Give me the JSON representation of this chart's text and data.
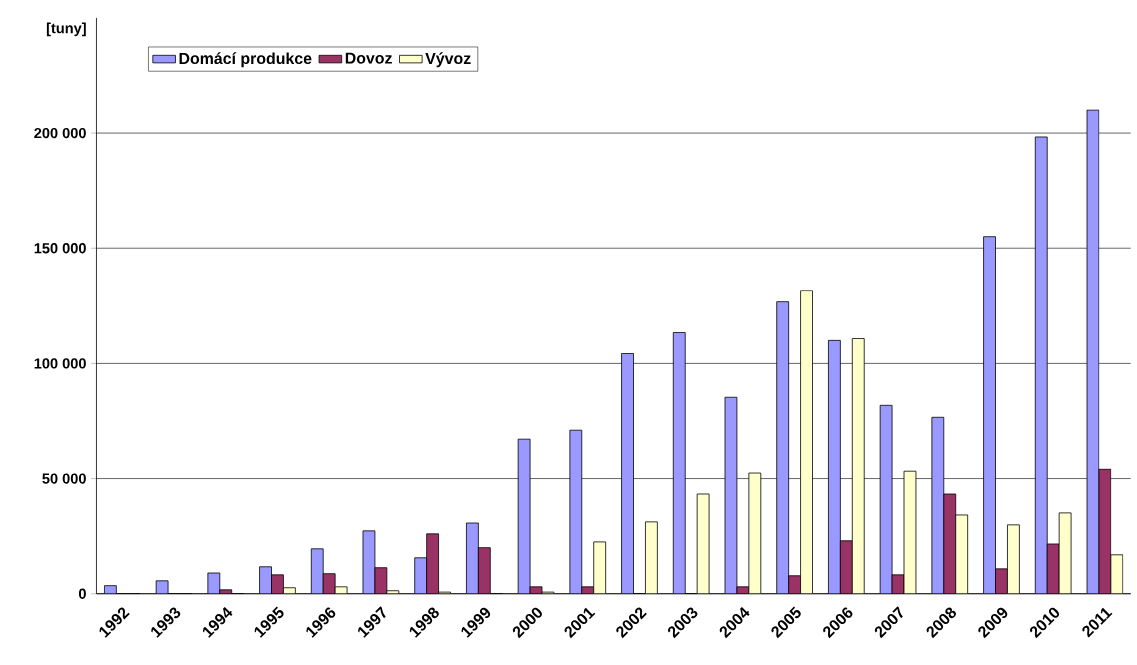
{
  "chart_data": {
    "type": "bar",
    "ylabel": "[tuny]",
    "categories": [
      "1992",
      "1993",
      "1994",
      "1995",
      "1996",
      "1997",
      "1998",
      "1999",
      "2000",
      "2001",
      "2002",
      "2003",
      "2004",
      "2005",
      "2006",
      "2007",
      "2008",
      "2009",
      "2010",
      "2011"
    ],
    "series": [
      {
        "name": "Domácí produkce",
        "color": "#9999ff",
        "values": [
          3500,
          5600,
          9000,
          11700,
          19500,
          27300,
          15600,
          30700,
          67100,
          71000,
          104300,
          113400,
          85300,
          126800,
          110000,
          81800,
          76600,
          155000,
          198300,
          210000
        ]
      },
      {
        "name": "Dovoz",
        "color": "#993366",
        "values": [
          0,
          0,
          1700,
          8200,
          8700,
          11300,
          26000,
          20000,
          3000,
          3000,
          0,
          0,
          3000,
          7800,
          23000,
          8200,
          43300,
          10800,
          21600,
          54100
        ]
      },
      {
        "name": "Vývoz",
        "color": "#ffffcc",
        "values": [
          0,
          0,
          0,
          2600,
          3000,
          1300,
          700,
          0,
          700,
          22500,
          31200,
          43300,
          52400,
          131600,
          110800,
          53200,
          34200,
          29900,
          35100,
          16900
        ]
      }
    ],
    "ylim": [
      0,
      250000
    ],
    "yticks": [
      {
        "value": 0,
        "label": "0"
      },
      {
        "value": 50000,
        "label": "50 000"
      },
      {
        "value": 100000,
        "label": "100 000"
      },
      {
        "value": 150000,
        "label": "150 000"
      },
      {
        "value": 200000,
        "label": "200 000"
      }
    ],
    "grid": "y",
    "legend": "top left"
  }
}
